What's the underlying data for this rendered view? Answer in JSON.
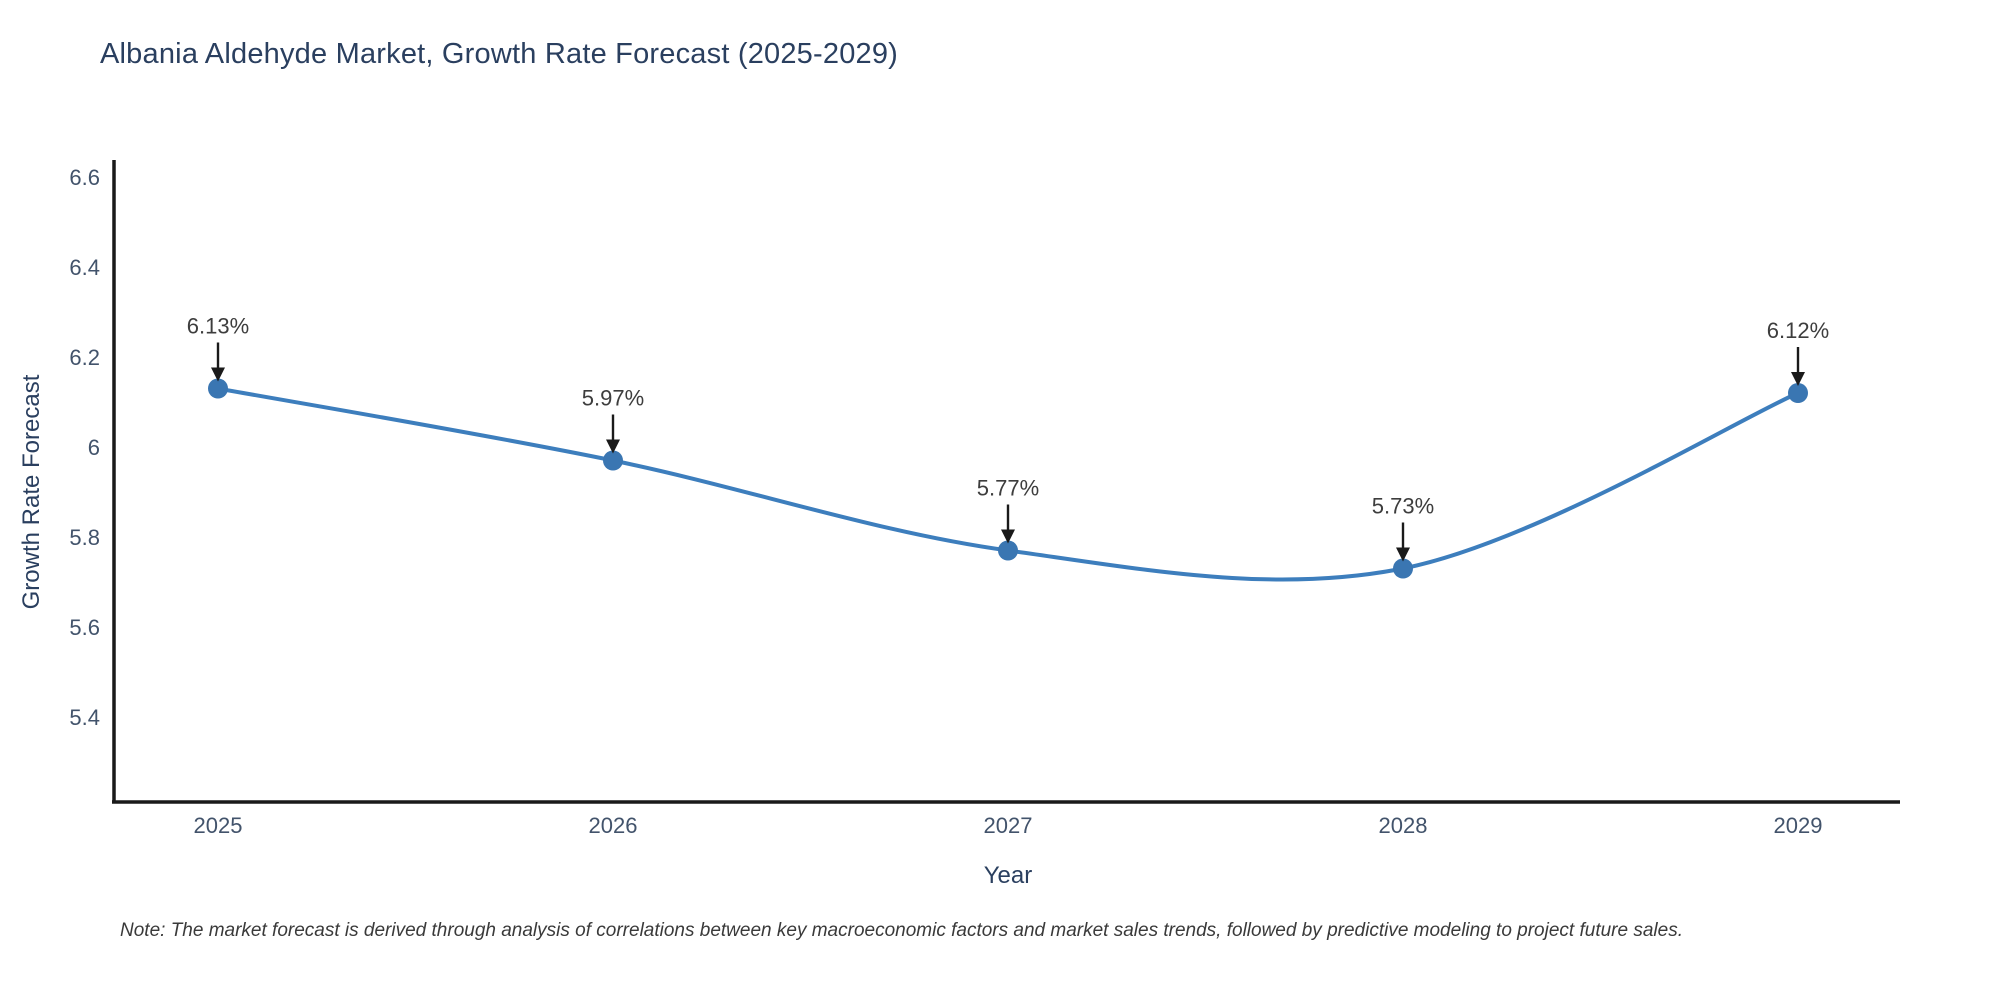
{
  "chart_data": {
    "type": "line",
    "title": "Albania Aldehyde Market, Growth Rate Forecast (2025-2029)",
    "xlabel": "Year",
    "ylabel": "Growth Rate Forecast",
    "x": [
      2025,
      2026,
      2027,
      2028,
      2029
    ],
    "series": [
      {
        "name": "Growth Rate Forecast",
        "values": [
          6.13,
          5.97,
          5.77,
          5.73,
          6.12
        ],
        "point_labels": [
          "6.13%",
          "5.97%",
          "5.77%",
          "5.73%",
          "6.12%"
        ]
      }
    ],
    "x_tick_labels": [
      "2025",
      "2026",
      "2027",
      "2028",
      "2029"
    ],
    "y_tick_labels": [
      "6.6",
      "6.4",
      "6.2",
      "6",
      "5.8",
      "5.6",
      "5.4"
    ],
    "y_tick_values": [
      6.6,
      6.4,
      6.2,
      6.0,
      5.8,
      5.6,
      5.4
    ],
    "ylim": [
      5.22,
      6.64
    ],
    "grid": false,
    "legend_position": "none",
    "line_shape": "spline",
    "colors": {
      "line": "#3d7ebd",
      "marker": "#3a76b2",
      "axis": "#1a1a1a",
      "annotation_arrow": "#1a1a1a",
      "annotation_text": "#3d3d3d",
      "tick_text": "#42536b",
      "title_text": "#2a3f5f"
    },
    "note": "Note: The market forecast is derived through analysis of correlations between key macroeconomic factors and market sales trends, followed by predictive modeling to project future sales."
  }
}
